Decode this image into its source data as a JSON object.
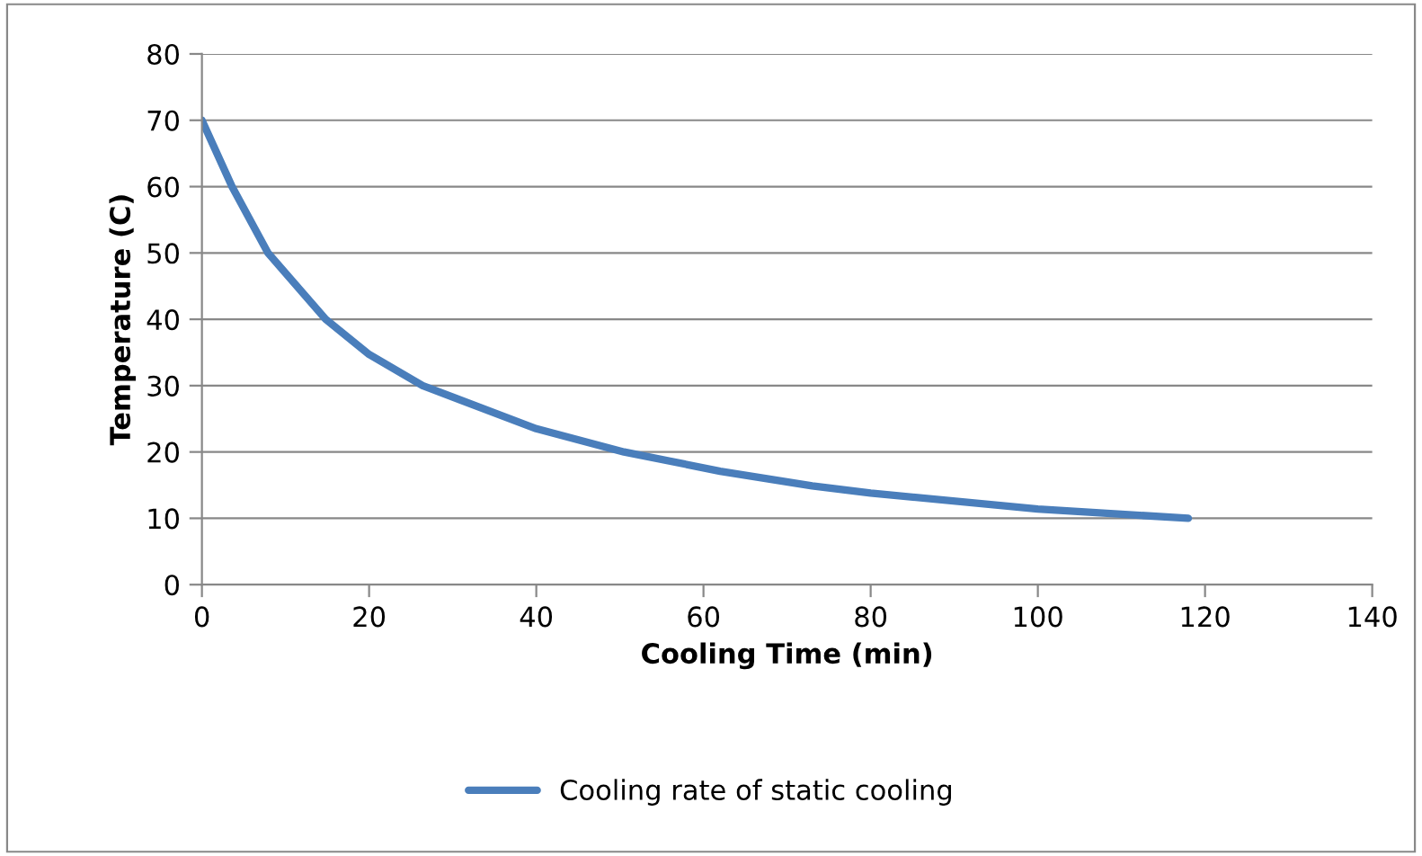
{
  "chart_data": {
    "type": "line",
    "xlabel": "Cooling Time (min)",
    "ylabel": "Temperature (C)",
    "series": [
      {
        "name": "Cooling rate of static cooling",
        "color": "#4a7ebb",
        "x": [
          0,
          3.6,
          7.9,
          14.8,
          20,
          26.4,
          40,
          50.5,
          62,
          73,
          80,
          100,
          118
        ],
        "values": [
          70,
          60,
          50,
          40,
          34.7,
          30,
          23.5,
          20,
          17.1,
          14.9,
          13.8,
          11.4,
          10
        ]
      }
    ],
    "xlim": [
      0,
      140
    ],
    "xticks": [
      0,
      20,
      40,
      60,
      80,
      100,
      120,
      140
    ],
    "ylim": [
      0,
      80
    ],
    "yticks": [
      0,
      10,
      20,
      30,
      40,
      50,
      60,
      70,
      80
    ],
    "grid": "y",
    "legend": "bottom",
    "marker": "none",
    "line_style": "solid"
  }
}
